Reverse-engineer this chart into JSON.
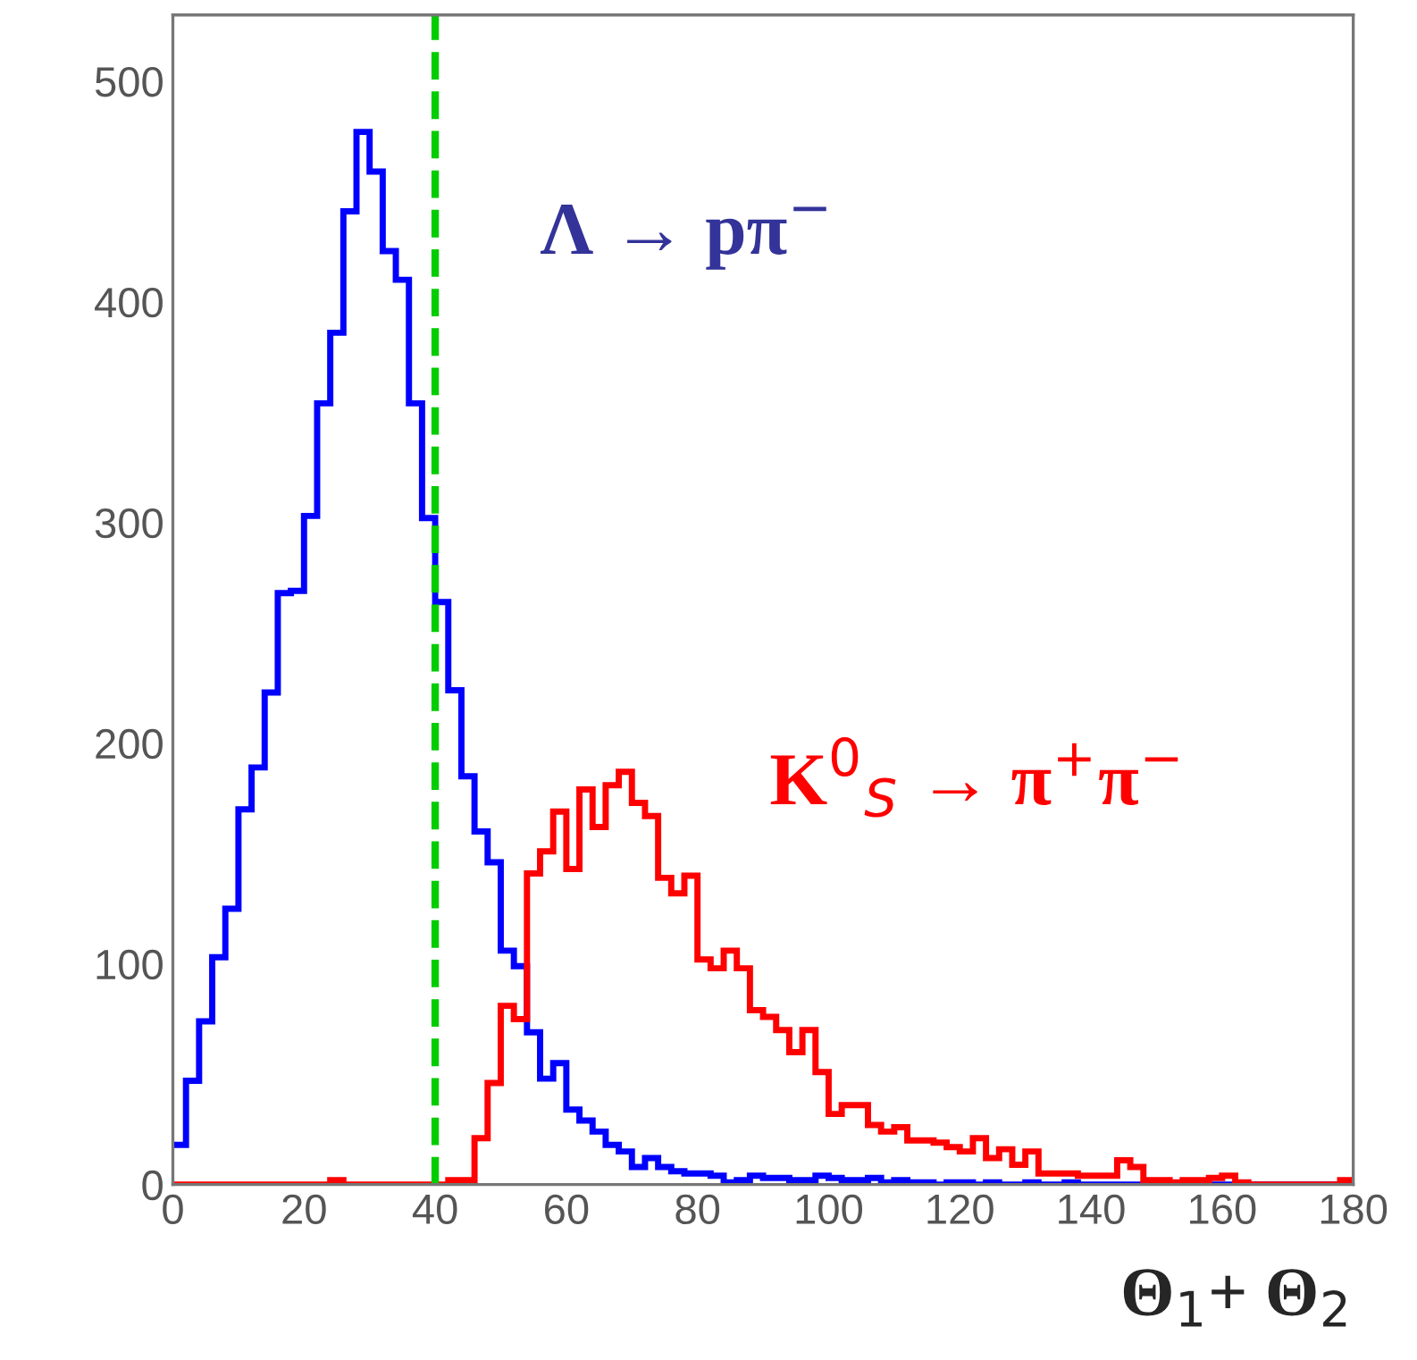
{
  "chart_data": {
    "type": "histogram",
    "xlabel": "Θ$_{1}$+ Θ$_{2}$",
    "bins": [
      0,
      2,
      4,
      6,
      8,
      10,
      12,
      14,
      16,
      18,
      20,
      22,
      24,
      26,
      28,
      30,
      32,
      34,
      36,
      38,
      40,
      42,
      44,
      46,
      48,
      50,
      52,
      54,
      56,
      58,
      60,
      62,
      64,
      66,
      68,
      70,
      72,
      74,
      76,
      78,
      80,
      82,
      84,
      86,
      88,
      90,
      92,
      94,
      96,
      98,
      100,
      102,
      104,
      106,
      108,
      110,
      112,
      114,
      116,
      118,
      120,
      122,
      124,
      126,
      128,
      130,
      132,
      134,
      136,
      138,
      140,
      142,
      144,
      146,
      148,
      150,
      152,
      154,
      156,
      158,
      160,
      162,
      164,
      166,
      168,
      170,
      172,
      174,
      176,
      178,
      180
    ],
    "series": [
      {
        "name": "Λ → pπ$^{−}$",
        "color": "#0000ff",
        "values": [
          18,
          47,
          74,
          103,
          125,
          170,
          189,
          223,
          268,
          269,
          303,
          354,
          386,
          441,
          477,
          459,
          423,
          410,
          354,
          302,
          264,
          224,
          185,
          160,
          146,
          106,
          99,
          69,
          48,
          55,
          34,
          29,
          24,
          18,
          15,
          8,
          12,
          8,
          6,
          5,
          5,
          4,
          1,
          2,
          4,
          3,
          3,
          2,
          2,
          4,
          3,
          2,
          2,
          3,
          1,
          2,
          1,
          1,
          0,
          1,
          1,
          0,
          1,
          0,
          0,
          1,
          0,
          0,
          1,
          0,
          0,
          0,
          0,
          0,
          0,
          0,
          0,
          0,
          0,
          0,
          0,
          0,
          0,
          0,
          0,
          0,
          0,
          0,
          0,
          0
        ]
      },
      {
        "name": "K$^{0}$$_{S}$ → π$^{+}$π$^{−}$",
        "color": "#ff0000",
        "values": [
          0,
          0,
          0,
          0,
          0,
          0,
          0,
          0,
          0,
          0,
          0,
          0,
          2,
          0,
          0,
          0,
          0,
          0,
          0,
          0,
          0,
          2,
          2,
          21,
          46,
          81,
          75,
          141,
          151,
          169,
          143,
          179,
          162,
          181,
          187,
          173,
          167,
          139,
          132,
          140,
          102,
          98,
          106,
          98,
          79,
          76,
          70,
          60,
          70,
          51,
          32,
          36,
          36,
          27,
          24,
          26,
          20,
          20,
          19,
          17,
          15,
          21,
          12,
          16,
          9,
          15,
          5,
          5,
          5,
          4,
          4,
          4,
          11,
          8,
          2,
          2,
          1,
          2,
          2,
          3,
          4,
          1,
          0,
          0,
          0,
          0,
          0,
          0,
          0,
          2
        ]
      }
    ],
    "xlim": [
      0,
      180
    ],
    "ylim": [
      0,
      530
    ],
    "xticks": [
      0,
      20,
      40,
      60,
      80,
      100,
      120,
      140,
      160,
      180
    ],
    "yticks": [
      0,
      100,
      200,
      300,
      400,
      500
    ],
    "ref_lines": [
      {
        "axis": "x",
        "value": 40,
        "color": "#00cc00",
        "line_style": "dashed"
      }
    ],
    "grid": false,
    "legend": false
  }
}
